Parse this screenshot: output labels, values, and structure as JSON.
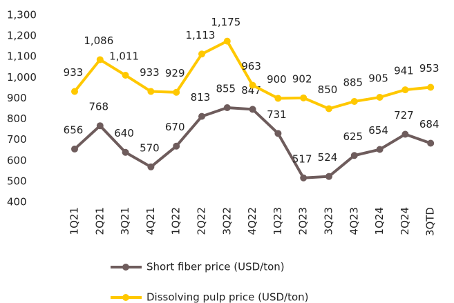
{
  "chart_data": {
    "type": "line",
    "categories": [
      "1Q21",
      "2Q21",
      "3Q21",
      "4Q21",
      "1Q22",
      "2Q22",
      "3Q22",
      "4Q22",
      "1Q23",
      "2Q23",
      "3Q23",
      "4Q23",
      "1Q24",
      "2Q24",
      "3QTD"
    ],
    "series": [
      {
        "name": "Short fiber price (USD/ton)",
        "color": "#6e5c5c",
        "values": [
          656,
          768,
          640,
          570,
          670,
          813,
          855,
          847,
          731,
          517,
          524,
          625,
          654,
          727,
          684
        ]
      },
      {
        "name": "Dissolving pulp price (USD/ton)",
        "color": "#ffc800",
        "values": [
          933,
          1086,
          1011,
          933,
          929,
          1113,
          1175,
          963,
          900,
          902,
          850,
          885,
          905,
          941,
          953
        ],
        "value_labels": [
          "933",
          "1,086",
          "1,011",
          "933",
          "929",
          "1,113",
          "1,175",
          "963",
          "900",
          "902",
          "850",
          "885",
          "905",
          "941",
          "953"
        ]
      }
    ],
    "ylim": [
      400,
      1300
    ],
    "yticks": [
      400,
      500,
      600,
      700,
      800,
      900,
      {
        "value": 1000,
        "label": "1,000"
      },
      {
        "value": 1100,
        "label": "1,100"
      },
      {
        "value": 1200,
        "label": "1,200"
      },
      {
        "value": 1300,
        "label": "1,300"
      }
    ],
    "grid": false,
    "legend": "bottom"
  }
}
